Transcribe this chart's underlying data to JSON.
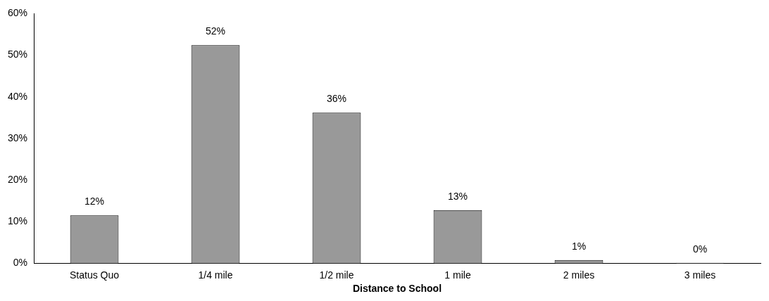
{
  "chart_data": {
    "type": "bar",
    "xlabel": "Distance to School",
    "categories": [
      "Status Quo",
      "1/4 mile",
      "1/2 mile",
      "1 mile",
      "2 miles",
      "3 miles"
    ],
    "values": [
      11.5,
      52.4,
      36.2,
      12.8,
      0.8,
      0.1
    ],
    "value_labels": [
      "12%",
      "52%",
      "36%",
      "13%",
      "1%",
      "0%"
    ],
    "color": "#999999",
    "ylim": [
      0,
      60
    ],
    "yticks": [
      {
        "value": 0,
        "label": "0%"
      },
      {
        "value": 10,
        "label": "10%"
      },
      {
        "value": 20,
        "label": "20%"
      },
      {
        "value": 30,
        "label": "30%"
      },
      {
        "value": 40,
        "label": "40%"
      },
      {
        "value": 50,
        "label": "50%"
      },
      {
        "value": 60,
        "label": "60%"
      }
    ],
    "grid": false,
    "legend": false
  }
}
